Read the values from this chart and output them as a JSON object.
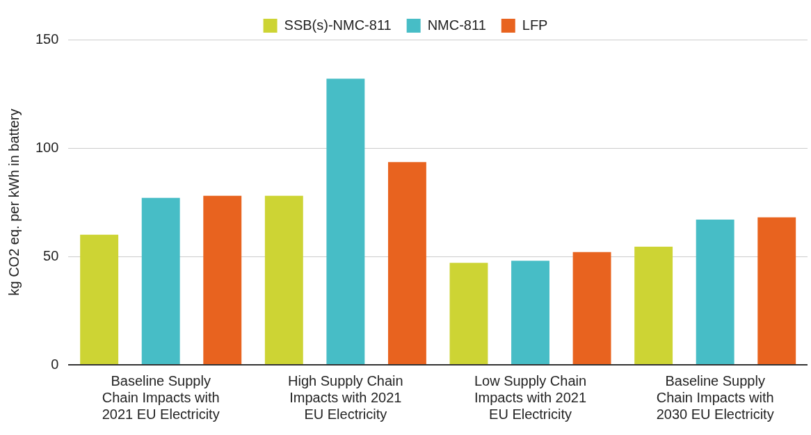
{
  "chart_data": {
    "type": "bar",
    "ylabel": "kg CO2 eq. per kWh in battery",
    "categories": [
      "Baseline Supply Chain Impacts with 2021 EU Electricity",
      "High Supply Chain Impacts with 2021 EU Electricity",
      "Low Supply Chain Impacts with 2021 EU Electricity",
      "Baseline Supply Chain Impacts with 2030 EU Electricity"
    ],
    "series": [
      {
        "name": "SSB(s)-NMC-811",
        "color": "#cdd434",
        "values": [
          60,
          78,
          47,
          54.5
        ]
      },
      {
        "name": "NMC-811",
        "color": "#47bdc6",
        "values": [
          77,
          132,
          48,
          67
        ]
      },
      {
        "name": "LFP",
        "color": "#e8631f",
        "values": [
          78,
          93.5,
          52,
          68
        ]
      }
    ],
    "ylim": [
      0,
      150
    ],
    "yticks": [
      0,
      50,
      100,
      150
    ],
    "grid": "y",
    "legend": "top"
  }
}
